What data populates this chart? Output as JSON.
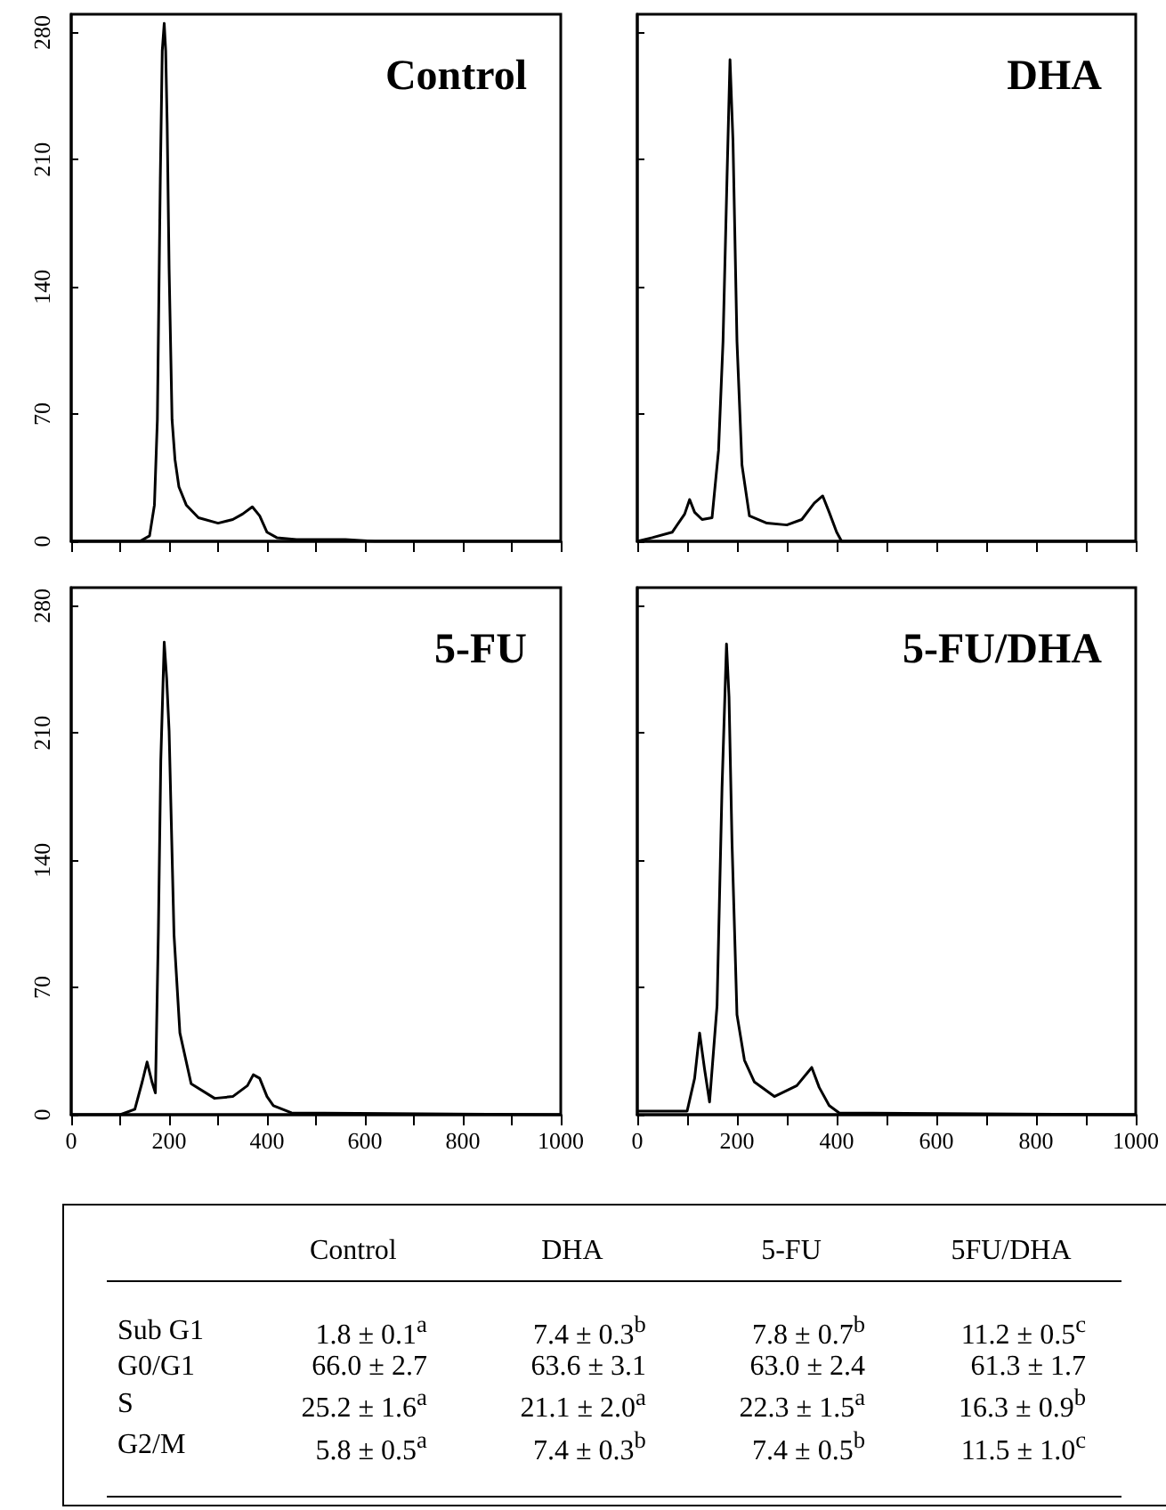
{
  "chart_data": [
    {
      "type": "line",
      "title": "Control",
      "tick_labels": "y",
      "xlim": [
        0,
        1000
      ],
      "ylim": [
        0,
        290
      ],
      "xticks": [
        0,
        {
          "value": 100,
          "label": null
        },
        200,
        {
          "value": 300,
          "label": null
        },
        400,
        {
          "value": 500,
          "label": null
        },
        600,
        {
          "value": 700,
          "label": null
        },
        800,
        {
          "value": 900,
          "label": null
        },
        1000
      ],
      "yticks": [
        0,
        70,
        140,
        210,
        280
      ],
      "grid": false,
      "marker": "none",
      "series": [
        {
          "color": "#000000",
          "x": [
            0,
            140,
            160,
            170,
            176,
            182,
            186,
            190,
            193,
            196,
            200,
            206,
            212,
            220,
            235,
            260,
            300,
            330,
            350,
            370,
            385,
            400,
            420,
            460,
            560,
            620,
            1000
          ],
          "values": [
            0,
            0,
            3,
            20,
            67,
            200,
            270,
            285,
            270,
            230,
            150,
            67,
            45,
            30,
            20,
            13,
            10,
            12,
            15,
            19,
            14,
            5,
            2,
            1,
            1,
            0,
            0
          ]
        }
      ]
    },
    {
      "type": "line",
      "title": "DHA",
      "tick_labels": false,
      "xlim": [
        0,
        1000
      ],
      "ylim": [
        0,
        290
      ],
      "xticks": [
        0,
        {
          "value": 100,
          "label": null
        },
        200,
        {
          "value": 300,
          "label": null
        },
        400,
        {
          "value": 500,
          "label": null
        },
        600,
        {
          "value": 700,
          "label": null
        },
        800,
        {
          "value": 900,
          "label": null
        },
        1000
      ],
      "yticks": [
        0,
        70,
        140,
        210,
        280
      ],
      "grid": false,
      "marker": "none",
      "series": [
        {
          "color": "#000000",
          "x": [
            0,
            30,
            70,
            95,
            105,
            115,
            130,
            150,
            163,
            172,
            180,
            186,
            192,
            200,
            210,
            225,
            260,
            300,
            330,
            355,
            372,
            385,
            400,
            410,
            1000
          ],
          "values": [
            0,
            2,
            5,
            15,
            23,
            16,
            12,
            13,
            50,
            110,
            200,
            265,
            220,
            110,
            42,
            14,
            10,
            9,
            12,
            21,
            25,
            16,
            5,
            0,
            0
          ]
        }
      ]
    },
    {
      "type": "line",
      "title": "5-FU",
      "xlim": [
        0,
        1000
      ],
      "ylim": [
        0,
        290
      ],
      "xticks": [
        0,
        {
          "value": 100,
          "label": null
        },
        200,
        {
          "value": 300,
          "label": null
        },
        400,
        {
          "value": 500,
          "label": null
        },
        600,
        {
          "value": 700,
          "label": null
        },
        800,
        {
          "value": 900,
          "label": null
        },
        1000
      ],
      "yticks": [
        0,
        70,
        140,
        210,
        280
      ],
      "grid": false,
      "marker": "none",
      "series": [
        {
          "color": "#000000",
          "x": [
            0,
            100,
            130,
            145,
            155,
            165,
            172,
            178,
            183,
            190,
            195,
            200,
            210,
            222,
            245,
            293,
            330,
            360,
            372,
            385,
            400,
            413,
            450,
            1000
          ],
          "values": [
            0,
            0,
            3,
            18,
            29,
            18,
            12,
            100,
            195,
            260,
            240,
            211,
            99,
            45,
            17,
            9,
            10,
            16,
            22,
            20,
            10,
            5,
            1,
            0
          ]
        }
      ]
    },
    {
      "type": "line",
      "title": "5-FU/DHA",
      "tick_labels": "x",
      "xlim": [
        0,
        1000
      ],
      "ylim": [
        0,
        290
      ],
      "xticks": [
        0,
        {
          "value": 100,
          "label": null
        },
        200,
        {
          "value": 300,
          "label": null
        },
        400,
        {
          "value": 500,
          "label": null
        },
        600,
        {
          "value": 700,
          "label": null
        },
        800,
        {
          "value": 900,
          "label": null
        },
        1000
      ],
      "yticks": [
        0,
        70,
        140,
        210,
        280
      ],
      "grid": false,
      "marker": "none",
      "series": [
        {
          "color": "#000000",
          "x": [
            0,
            100,
            115,
            125,
            135,
            145,
            160,
            170,
            179,
            184,
            190,
            200,
            215,
            235,
            275,
            320,
            350,
            365,
            385,
            405,
            1000
          ],
          "values": [
            2,
            2,
            20,
            45,
            25,
            7,
            60,
            180,
            259,
            230,
            150,
            55,
            30,
            18,
            10,
            16,
            26,
            15,
            5,
            1,
            0
          ]
        }
      ]
    },
    {
      "type": "other",
      "categories": [
        "Control",
        "DHA",
        "5-FU",
        "5FU/DHA"
      ],
      "y_categories": [
        "Sub G1",
        "G0/G1",
        "S",
        "G2/M"
      ],
      "cell_labels": [
        [
          "1.8 ± 0.1$^{a}$",
          "7.4 ± 0.3$^{b}$",
          "7.8 ± 0.7$^{b}$",
          "11.2 ± 0.5$^{c}$"
        ],
        [
          "66.0 ± 2.7",
          "63.6 ± 3.1",
          "63.0 ± 2.4",
          "61.3 ± 1.7"
        ],
        [
          "25.2 ± 1.6$^{a}$",
          "21.1 ± 2.0$^{a}$",
          "22.3 ± 1.5$^{a}$",
          "16.3 ± 0.9$^{b}$"
        ],
        [
          "5.8 ± 0.5$^{a}$",
          "7.4 ± 0.3$^{b}$",
          "7.4 ± 0.5$^{b}$",
          "11.5 ± 1.0$^{c}$"
        ]
      ]
    }
  ]
}
